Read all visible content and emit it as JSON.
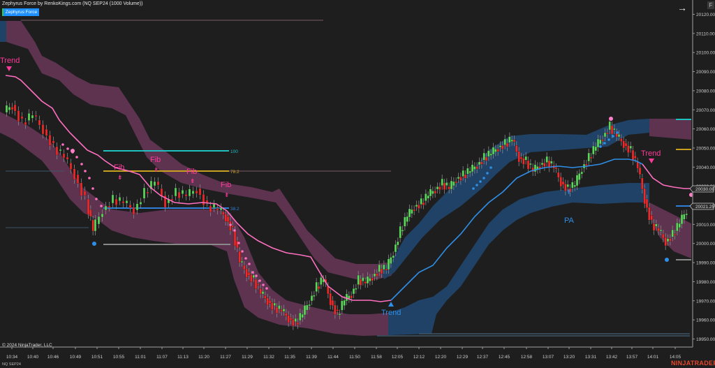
{
  "header": {
    "title": "Zephyrus Force by RenkoKings.com (NQ SEP24 (1000 Volume))",
    "indicator_button": "Zephyrus Force",
    "nav_arrow": "→",
    "f_button": "F"
  },
  "footer": {
    "copyright": "© 2024 NinjaTrader, LLC",
    "instrument": "NQ SEP24",
    "brand": "NINJATRADER"
  },
  "colors": {
    "background": "#1e1e1e",
    "bull_candle": "#5bd75b",
    "bear_candle": "#f02a2a",
    "bear_band": "#5e3350",
    "bull_band": "#1f4266",
    "bear_line": "#ff6fc0",
    "bull_line": "#2e8fe8",
    "fib_100": "#20c0c0",
    "fib_78": "#c8a020",
    "fib_382": "#2e7fd8",
    "brand": "#e8472b"
  },
  "price_labels": {
    "current_upper": "20030.00",
    "current_lower": "20021.25"
  },
  "fib_levels": {
    "level_100": "100",
    "level_78": "78.2",
    "level_38": "38.2"
  },
  "signals": {
    "trend_left": "Trend",
    "trend_mid": "Trend",
    "trend_right": "Trend",
    "fib1": "Fib",
    "fib2": "Fib",
    "fib3": "Fib",
    "fib4": "Fib",
    "pa": "PA"
  },
  "chart_data": {
    "type": "candlestick",
    "title": "Zephyrus Force by RenkoKings.com (NQ SEP24 (1000 Volume))",
    "xlabel": "",
    "ylabel": "",
    "ylim": [
      19945,
      20125
    ],
    "y_ticks": [
      "20120.00",
      "20110.00",
      "20100.00",
      "20090.00",
      "20080.00",
      "20070.00",
      "20060.00",
      "20050.00",
      "20040.00",
      "20030.00",
      "20020.00",
      "20010.00",
      "20000.00",
      "19990.00",
      "19980.00",
      "19970.00",
      "19960.00",
      "19950.00"
    ],
    "x_ticks": [
      "10:34",
      "10:40",
      "10:46",
      "10:49",
      "10:51",
      "10:55",
      "11:01",
      "11:07",
      "11:13",
      "11:20",
      "11:27",
      "11:29",
      "11:32",
      "11:35",
      "11:39",
      "11:44",
      "11:50",
      "11:58",
      "12:05",
      "12:12",
      "12:20",
      "12:29",
      "12:37",
      "12:45",
      "12:58",
      "13:07",
      "13:20",
      "13:31",
      "13:42",
      "13:57",
      "14:01",
      "14:05"
    ],
    "annotations": [
      {
        "text": "Trend",
        "type": "bearish",
        "near_time": "10:34"
      },
      {
        "text": "Fib",
        "type": "bearish",
        "near_time": "10:55"
      },
      {
        "text": "Fib",
        "type": "bearish",
        "near_time": "11:07"
      },
      {
        "text": "Fib",
        "type": "bearish",
        "near_time": "11:13"
      },
      {
        "text": "Fib",
        "type": "bearish",
        "near_time": "11:27"
      },
      {
        "text": "Trend",
        "type": "bullish",
        "near_time": "11:58"
      },
      {
        "text": "PA",
        "type": "bullish",
        "near_time": "13:20"
      },
      {
        "text": "Trend",
        "type": "bearish",
        "near_time": "13:57"
      }
    ],
    "fib_levels": [
      {
        "label": "100",
        "price": 20049
      },
      {
        "label": "78.2",
        "price": 20039
      },
      {
        "label": "38.2",
        "price": 20021
      }
    ],
    "last_prices": {
      "trend_line": 20030.0,
      "close": 20021.25
    },
    "series_trend_line": [
      {
        "time": "10:34",
        "value": 20088
      },
      {
        "time": "10:46",
        "value": 20070
      },
      {
        "time": "10:55",
        "value": 20050
      },
      {
        "time": "11:07",
        "value": 20030
      },
      {
        "time": "11:20",
        "value": 20024
      },
      {
        "time": "11:29",
        "value": 20005
      },
      {
        "time": "11:39",
        "value": 19992
      },
      {
        "time": "11:50",
        "value": 19973
      },
      {
        "time": "11:58",
        "value": 19972
      },
      {
        "time": "12:12",
        "value": 19990
      },
      {
        "time": "12:29",
        "value": 20010
      },
      {
        "time": "12:45",
        "value": 20028
      },
      {
        "time": "13:07",
        "value": 20040
      },
      {
        "time": "13:20",
        "value": 20038
      },
      {
        "time": "13:42",
        "value": 20045
      },
      {
        "time": "13:57",
        "value": 20045
      },
      {
        "time": "14:05",
        "value": 20030
      }
    ]
  }
}
